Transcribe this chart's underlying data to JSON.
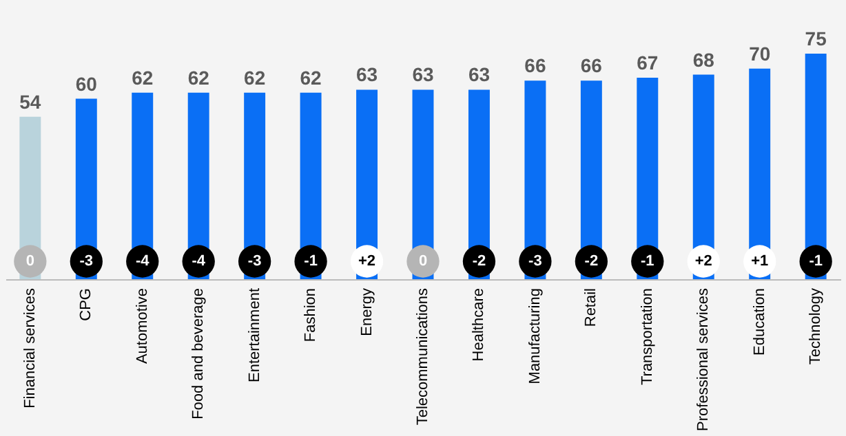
{
  "chart_data": {
    "type": "bar",
    "categories": [
      "Financial services",
      "CPG",
      "Automotive",
      "Food and beverage",
      "Entertainment",
      "Fashion",
      "Energy",
      "Telecommunications",
      "Healthcare",
      "Manufacturing",
      "Retail",
      "Transportation",
      "Professional services",
      "Education",
      "Technology"
    ],
    "values": [
      54,
      60,
      62,
      62,
      62,
      62,
      63,
      63,
      63,
      66,
      66,
      67,
      68,
      70,
      75
    ],
    "colors": [
      "#b9d3dc",
      "#0a6ff5",
      "#0a6ff5",
      "#0a6ff5",
      "#0a6ff5",
      "#0a6ff5",
      "#0a6ff5",
      "#0a6ff5",
      "#0a6ff5",
      "#0a6ff5",
      "#0a6ff5",
      "#0a6ff5",
      "#0a6ff5",
      "#0a6ff5",
      "#0a6ff5"
    ],
    "data_labels": true,
    "annotations": [
      {
        "text": "0",
        "x": "Financial services"
      },
      {
        "text": "-3",
        "x": "CPG"
      },
      {
        "text": "-4",
        "x": "Automotive"
      },
      {
        "text": "-4",
        "x": "Food and beverage"
      },
      {
        "text": "-3",
        "x": "Entertainment"
      },
      {
        "text": "-1",
        "x": "Fashion"
      },
      {
        "text": "+2",
        "x": "Energy"
      },
      {
        "text": "0",
        "x": "Telecommunications"
      },
      {
        "text": "-2",
        "x": "Healthcare"
      },
      {
        "text": "-3",
        "x": "Manufacturing"
      },
      {
        "text": "-2",
        "x": "Retail"
      },
      {
        "text": "-1",
        "x": "Transportation"
      },
      {
        "text": "+2",
        "x": "Professional services"
      },
      {
        "text": "+1",
        "x": "Education"
      },
      {
        "text": "-1",
        "x": "Technology"
      }
    ]
  }
}
